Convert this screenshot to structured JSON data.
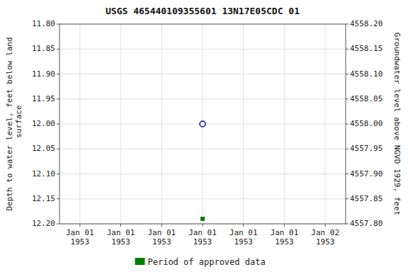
{
  "chart_data": {
    "type": "scatter",
    "title": "USGS 465440109355601 13N17E05CDC 01",
    "y_label": "Depth to water level, feet below land\n surface",
    "y2_label": "Groundwater level above NGVD 1929, feet",
    "categories": [
      "Jan 01\n1953",
      "Jan 01\n1953",
      "Jan 01\n1953",
      "Jan 01\n1953",
      "Jan 01\n1953",
      "Jan 01\n1953",
      "Jan 02\n1953"
    ],
    "series": [
      {
        "color": "#0000bb",
        "marker": "circle",
        "values": [
          null,
          null,
          null,
          12.0,
          null,
          null,
          null
        ]
      },
      {
        "name": "Period of approved data",
        "color": "#008000",
        "marker": "square",
        "values": [
          null,
          null,
          null,
          12.19,
          null,
          null,
          null
        ]
      }
    ],
    "ylim": [
      12.2,
      11.8
    ],
    "yticks": [
      {
        "value": 11.8,
        "label": "11.80"
      },
      {
        "value": 11.85,
        "label": "11.85"
      },
      {
        "value": 11.9,
        "label": "11.90"
      },
      {
        "value": 11.95,
        "label": "11.95"
      },
      {
        "value": 12.0,
        "label": "12.00"
      },
      {
        "value": 12.05,
        "label": "12.05"
      },
      {
        "value": 12.1,
        "label": "12.10"
      },
      {
        "value": 12.15,
        "label": "12.15"
      },
      {
        "value": 12.2,
        "label": "12.20"
      }
    ],
    "y2lim": [
      4557.8,
      4558.2
    ],
    "y2ticks": [
      {
        "value": 4558.2,
        "label": "4558.20"
      },
      {
        "value": 4558.15,
        "label": "4558.15"
      },
      {
        "value": 4558.1,
        "label": "4558.10"
      },
      {
        "value": 4558.05,
        "label": "4558.05"
      },
      {
        "value": 4558.0,
        "label": "4558.00"
      },
      {
        "value": 4557.95,
        "label": "4557.95"
      },
      {
        "value": 4557.9,
        "label": "4557.90"
      },
      {
        "value": 4557.85,
        "label": "4557.85"
      },
      {
        "value": 4557.8,
        "label": "4557.80"
      }
    ],
    "grid": true,
    "legend": "bottom"
  }
}
